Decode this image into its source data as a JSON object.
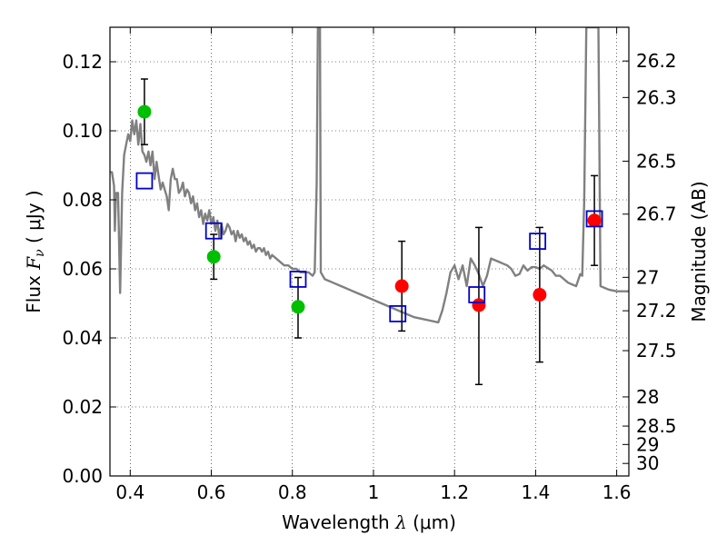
{
  "chart_data": {
    "type": "scatter",
    "xlabel_text": "Wavelength",
    "xlabel_symbol": "λ",
    "xlabel_unit": "(μm)",
    "ylabel_text": "Flux",
    "ylabel_symbol": "F",
    "ylabel_sub": "ν",
    "ylabel_unit": "( μJy )",
    "y2label": "Magnitude (AB)",
    "xlim": [
      0.35,
      1.63
    ],
    "ylim": [
      0.0,
      0.13
    ],
    "grid": true,
    "x_ticks": [
      {
        "value": 0.4,
        "label": "0.4"
      },
      {
        "value": 0.6,
        "label": "0.6"
      },
      {
        "value": 0.8,
        "label": "0.8"
      },
      {
        "value": 1.0,
        "label": "1"
      },
      {
        "value": 1.2,
        "label": "1.2"
      },
      {
        "value": 1.4,
        "label": "1.4"
      },
      {
        "value": 1.6,
        "label": "1.6"
      }
    ],
    "y_ticks": [
      {
        "value": 0.0,
        "label": "0.00"
      },
      {
        "value": 0.02,
        "label": "0.02"
      },
      {
        "value": 0.04,
        "label": "0.04"
      },
      {
        "value": 0.06,
        "label": "0.06"
      },
      {
        "value": 0.08,
        "label": "0.08"
      },
      {
        "value": 0.1,
        "label": "0.10"
      },
      {
        "value": 0.12,
        "label": "0.12"
      }
    ],
    "magnitude_ticks": [
      {
        "mag": 26.2,
        "label": "26.2"
      },
      {
        "mag": 26.3,
        "label": "26.3"
      },
      {
        "mag": 26.5,
        "label": "26.5"
      },
      {
        "mag": 26.7,
        "label": "26.7"
      },
      {
        "mag": 27.0,
        "label": "27"
      },
      {
        "mag": 27.2,
        "label": "27.2"
      },
      {
        "mag": 27.5,
        "label": "27.5"
      },
      {
        "mag": 28.0,
        "label": "28"
      },
      {
        "mag": 28.5,
        "label": "28.5"
      },
      {
        "mag": 29.0,
        "label": "29"
      },
      {
        "mag": 30.0,
        "label": "30"
      }
    ],
    "series": [
      {
        "kind": "line",
        "color": "#808080",
        "points": [
          [
            0.35,
            0.088
          ],
          [
            0.355,
            0.088
          ],
          [
            0.36,
            0.084
          ],
          [
            0.362,
            0.071
          ],
          [
            0.365,
            0.082
          ],
          [
            0.37,
            0.082
          ],
          [
            0.375,
            0.053
          ],
          [
            0.38,
            0.082
          ],
          [
            0.385,
            0.093
          ],
          [
            0.39,
            0.096
          ],
          [
            0.395,
            0.099
          ],
          [
            0.4,
            0.097
          ],
          [
            0.405,
            0.103
          ],
          [
            0.41,
            0.099
          ],
          [
            0.415,
            0.103
          ],
          [
            0.42,
            0.096
          ],
          [
            0.425,
            0.102
          ],
          [
            0.43,
            0.094
          ],
          [
            0.435,
            0.093
          ],
          [
            0.44,
            0.091
          ],
          [
            0.445,
            0.094
          ],
          [
            0.45,
            0.09
          ],
          [
            0.455,
            0.094
          ],
          [
            0.46,
            0.086
          ],
          [
            0.465,
            0.091
          ],
          [
            0.47,
            0.087
          ],
          [
            0.475,
            0.083
          ],
          [
            0.48,
            0.085
          ],
          [
            0.485,
            0.083
          ],
          [
            0.49,
            0.081
          ],
          [
            0.495,
            0.077
          ],
          [
            0.5,
            0.086
          ],
          [
            0.505,
            0.089
          ],
          [
            0.51,
            0.086
          ],
          [
            0.515,
            0.086
          ],
          [
            0.52,
            0.082
          ],
          [
            0.525,
            0.083
          ],
          [
            0.53,
            0.085
          ],
          [
            0.535,
            0.081
          ],
          [
            0.54,
            0.083
          ],
          [
            0.545,
            0.082
          ],
          [
            0.55,
            0.079
          ],
          [
            0.555,
            0.081
          ],
          [
            0.56,
            0.077
          ],
          [
            0.565,
            0.079
          ],
          [
            0.57,
            0.075
          ],
          [
            0.575,
            0.077
          ],
          [
            0.58,
            0.073
          ],
          [
            0.585,
            0.076
          ],
          [
            0.59,
            0.074
          ],
          [
            0.595,
            0.077
          ],
          [
            0.6,
            0.073
          ],
          [
            0.605,
            0.075
          ],
          [
            0.61,
            0.071
          ],
          [
            0.615,
            0.074
          ],
          [
            0.62,
            0.069
          ],
          [
            0.625,
            0.073
          ],
          [
            0.63,
            0.07
          ],
          [
            0.635,
            0.071
          ],
          [
            0.64,
            0.073
          ],
          [
            0.645,
            0.072
          ],
          [
            0.65,
            0.07
          ],
          [
            0.655,
            0.071
          ],
          [
            0.66,
            0.068
          ],
          [
            0.665,
            0.071
          ],
          [
            0.67,
            0.069
          ],
          [
            0.675,
            0.07
          ],
          [
            0.68,
            0.068
          ],
          [
            0.685,
            0.069
          ],
          [
            0.69,
            0.067
          ],
          [
            0.695,
            0.068
          ],
          [
            0.7,
            0.066
          ],
          [
            0.705,
            0.067
          ],
          [
            0.71,
            0.065
          ],
          [
            0.715,
            0.066
          ],
          [
            0.72,
            0.066
          ],
          [
            0.725,
            0.065
          ],
          [
            0.73,
            0.066
          ],
          [
            0.735,
            0.064
          ],
          [
            0.74,
            0.065
          ],
          [
            0.745,
            0.063
          ],
          [
            0.75,
            0.064
          ],
          [
            0.76,
            0.063
          ],
          [
            0.77,
            0.062
          ],
          [
            0.78,
            0.061
          ],
          [
            0.79,
            0.061
          ],
          [
            0.8,
            0.06
          ],
          [
            0.81,
            0.06
          ],
          [
            0.82,
            0.059
          ],
          [
            0.83,
            0.059
          ],
          [
            0.84,
            0.059
          ],
          [
            0.85,
            0.058
          ],
          [
            0.855,
            0.059
          ],
          [
            0.86,
            0.085
          ],
          [
            0.863,
            0.13
          ],
          [
            0.868,
            0.13
          ],
          [
            0.87,
            0.059
          ],
          [
            0.875,
            0.058
          ],
          [
            0.88,
            0.057
          ],
          [
            0.9,
            0.056
          ],
          [
            0.92,
            0.055
          ],
          [
            0.94,
            0.054
          ],
          [
            0.96,
            0.053
          ],
          [
            0.98,
            0.052
          ],
          [
            1.0,
            0.051
          ],
          [
            1.02,
            0.05
          ],
          [
            1.04,
            0.049
          ],
          [
            1.06,
            0.048
          ],
          [
            1.08,
            0.047
          ],
          [
            1.1,
            0.046
          ],
          [
            1.12,
            0.0455
          ],
          [
            1.14,
            0.045
          ],
          [
            1.16,
            0.0445
          ],
          [
            1.17,
            0.048
          ],
          [
            1.18,
            0.053
          ],
          [
            1.19,
            0.059
          ],
          [
            1.2,
            0.061
          ],
          [
            1.21,
            0.057
          ],
          [
            1.22,
            0.061
          ],
          [
            1.23,
            0.055
          ],
          [
            1.24,
            0.063
          ],
          [
            1.25,
            0.061
          ],
          [
            1.26,
            0.0585
          ],
          [
            1.27,
            0.055
          ],
          [
            1.28,
            0.058
          ],
          [
            1.29,
            0.063
          ],
          [
            1.3,
            0.0625
          ],
          [
            1.31,
            0.062
          ],
          [
            1.32,
            0.0615
          ],
          [
            1.33,
            0.061
          ],
          [
            1.34,
            0.06
          ],
          [
            1.35,
            0.058
          ],
          [
            1.36,
            0.0585
          ],
          [
            1.37,
            0.061
          ],
          [
            1.38,
            0.0595
          ],
          [
            1.39,
            0.0605
          ],
          [
            1.4,
            0.0605
          ],
          [
            1.41,
            0.06
          ],
          [
            1.42,
            0.061
          ],
          [
            1.44,
            0.0595
          ],
          [
            1.45,
            0.058
          ],
          [
            1.46,
            0.058
          ],
          [
            1.47,
            0.057
          ],
          [
            1.48,
            0.056
          ],
          [
            1.49,
            0.0555
          ],
          [
            1.5,
            0.055
          ],
          [
            1.51,
            0.0585
          ],
          [
            1.515,
            0.058
          ],
          [
            1.52,
            0.08
          ],
          [
            1.525,
            0.13
          ],
          [
            1.555,
            0.13
          ],
          [
            1.56,
            0.055
          ],
          [
            1.58,
            0.054
          ],
          [
            1.6,
            0.0535
          ],
          [
            1.63,
            0.0535
          ]
        ]
      },
      {
        "kind": "points",
        "marker": "circle",
        "color": "#00bf00",
        "points": [
          {
            "x": 0.435,
            "y": 0.1055,
            "yerr_low": 0.096,
            "yerr_high": 0.115
          },
          {
            "x": 0.606,
            "y": 0.0635,
            "yerr_low": 0.057,
            "yerr_high": 0.07
          },
          {
            "x": 0.814,
            "y": 0.049,
            "yerr_low": 0.04,
            "yerr_high": 0.0575
          }
        ]
      },
      {
        "kind": "points",
        "marker": "circle",
        "color": "#ff0000",
        "points": [
          {
            "x": 1.07,
            "y": 0.055,
            "yerr_low": 0.042,
            "yerr_high": 0.068
          },
          {
            "x": 1.26,
            "y": 0.0495,
            "yerr_low": 0.0265,
            "yerr_high": 0.072
          },
          {
            "x": 1.41,
            "y": 0.0525,
            "yerr_low": 0.033,
            "yerr_high": 0.072
          },
          {
            "x": 1.545,
            "y": 0.074,
            "yerr_low": 0.061,
            "yerr_high": 0.087
          }
        ]
      },
      {
        "kind": "points",
        "marker": "square",
        "color": "#0000cc",
        "points": [
          {
            "x": 0.435,
            "y": 0.0855
          },
          {
            "x": 0.606,
            "y": 0.071
          },
          {
            "x": 0.814,
            "y": 0.057
          },
          {
            "x": 1.06,
            "y": 0.047
          },
          {
            "x": 1.255,
            "y": 0.0525
          },
          {
            "x": 1.405,
            "y": 0.068
          },
          {
            "x": 1.545,
            "y": 0.0745
          }
        ]
      }
    ]
  }
}
